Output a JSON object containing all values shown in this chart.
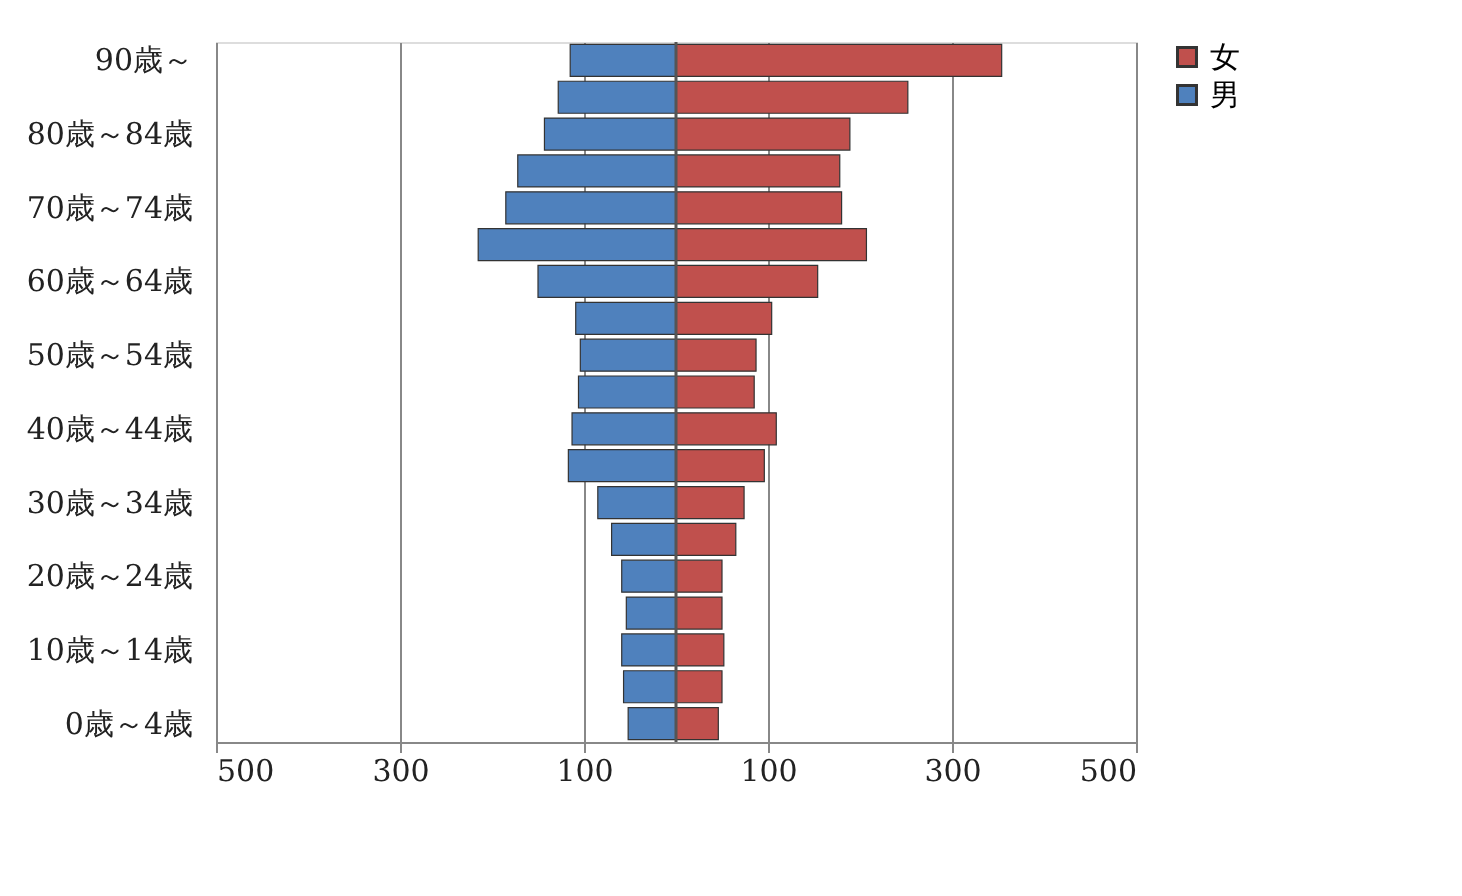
{
  "chart_data": {
    "type": "bar",
    "orientation": "horizontal",
    "categories": [
      "90歳～",
      null,
      "80歳～84歳",
      null,
      "70歳～74歳",
      null,
      "60歳～64歳",
      null,
      "50歳～54歳",
      null,
      "40歳～44歳",
      null,
      "30歳～34歳",
      null,
      "20歳～24歳",
      null,
      "10歳～14歳",
      null,
      "0歳～4歳"
    ],
    "series": [
      {
        "name": "女",
        "color": "#c0504d",
        "values": [
          354,
          252,
          189,
          178,
          180,
          207,
          154,
          104,
          87,
          85,
          109,
          96,
          74,
          65,
          50,
          50,
          52,
          50,
          46
        ]
      },
      {
        "name": "男",
        "color": "#4f81bd",
        "values": [
          -115,
          -128,
          -143,
          -172,
          -185,
          -215,
          -150,
          -109,
          -104,
          -106,
          -113,
          -117,
          -85,
          -70,
          -59,
          -54,
          -59,
          -57,
          -52
        ]
      }
    ],
    "xlim": [
      -500,
      500
    ],
    "xticks": [
      {
        "value": -500,
        "label": "500"
      },
      {
        "value": -300,
        "label": "300"
      },
      {
        "value": -100,
        "label": "100"
      },
      {
        "value": 100,
        "label": "100"
      },
      {
        "value": 300,
        "label": "300"
      },
      {
        "value": 500,
        "label": "500"
      }
    ],
    "grid": "x",
    "legend": "right",
    "stacked": true
  }
}
